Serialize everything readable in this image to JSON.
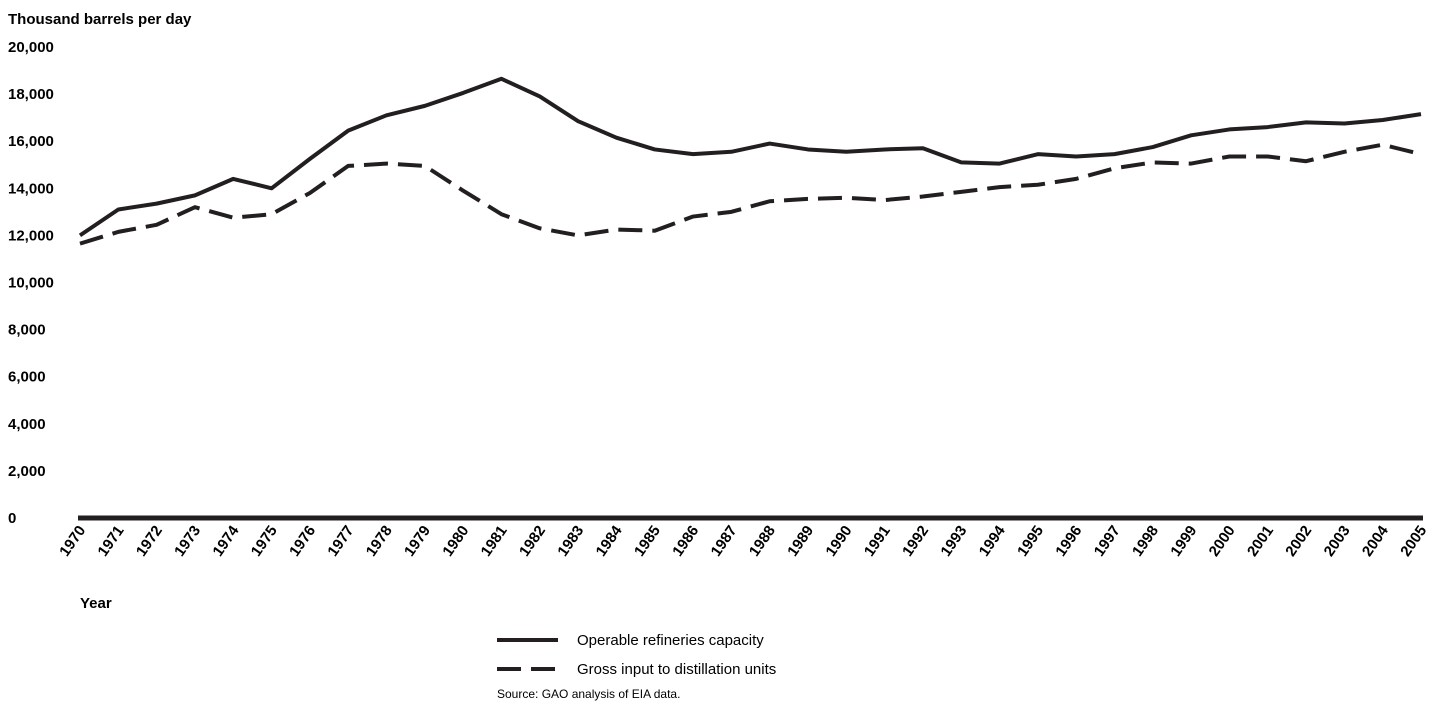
{
  "chart_data": {
    "type": "line",
    "ylabel": "Thousand barrels per day",
    "xlabel": "Year",
    "ylim": [
      0,
      20000
    ],
    "yticks": [
      "0",
      "2,000",
      "4,000",
      "6,000",
      "8,000",
      "10,000",
      "12,000",
      "14,000",
      "16,000",
      "18,000",
      "20,000"
    ],
    "ytick_values": [
      0,
      2000,
      4000,
      6000,
      8000,
      10000,
      12000,
      14000,
      16000,
      18000,
      20000
    ],
    "x": [
      1970,
      1971,
      1972,
      1973,
      1974,
      1975,
      1976,
      1977,
      1978,
      1979,
      1980,
      1981,
      1982,
      1983,
      1984,
      1985,
      1986,
      1987,
      1988,
      1989,
      1990,
      1991,
      1992,
      1993,
      1994,
      1995,
      1996,
      1997,
      1998,
      1999,
      2000,
      2001,
      2002,
      2003,
      2004,
      2005
    ],
    "xticks": [
      "1970",
      "1971",
      "1972",
      "1973",
      "1974",
      "1975",
      "1976",
      "1977",
      "1978",
      "1979",
      "1980",
      "1981",
      "1982",
      "1983",
      "1984",
      "1985",
      "1986",
      "1987",
      "1988",
      "1989",
      "1990",
      "1991",
      "1992",
      "1993",
      "1994",
      "1995",
      "1996",
      "1997",
      "1998",
      "1999",
      "2000",
      "2001",
      "2002",
      "2003",
      "2004",
      "2005"
    ],
    "grid": false,
    "legend_position": "bottom-center",
    "series": [
      {
        "name": "Operable refineries capacity",
        "style": "solid",
        "values": [
          12000,
          13100,
          13350,
          13700,
          14400,
          14000,
          15250,
          16450,
          17100,
          17500,
          18050,
          18650,
          17900,
          16850,
          16150,
          15650,
          15450,
          15550,
          15900,
          15650,
          15550,
          15650,
          15700,
          15100,
          15050,
          15450,
          15350,
          15450,
          15750,
          16250,
          16500,
          16600,
          16800,
          16750,
          16900,
          17150
        ]
      },
      {
        "name": "Gross input to distillation units",
        "style": "dashed",
        "values": [
          11650,
          12150,
          12450,
          13200,
          12750,
          12900,
          13800,
          14950,
          15050,
          14950,
          13900,
          12900,
          12300,
          12000,
          12250,
          12200,
          12800,
          13000,
          13450,
          13550,
          13600,
          13500,
          13650,
          13850,
          14050,
          14150,
          14400,
          14850,
          15100,
          15050,
          15350,
          15350,
          15150,
          15550,
          15850,
          15450
        ]
      }
    ],
    "color": "#231f20"
  },
  "source_note": "Source: GAO analysis of EIA data."
}
